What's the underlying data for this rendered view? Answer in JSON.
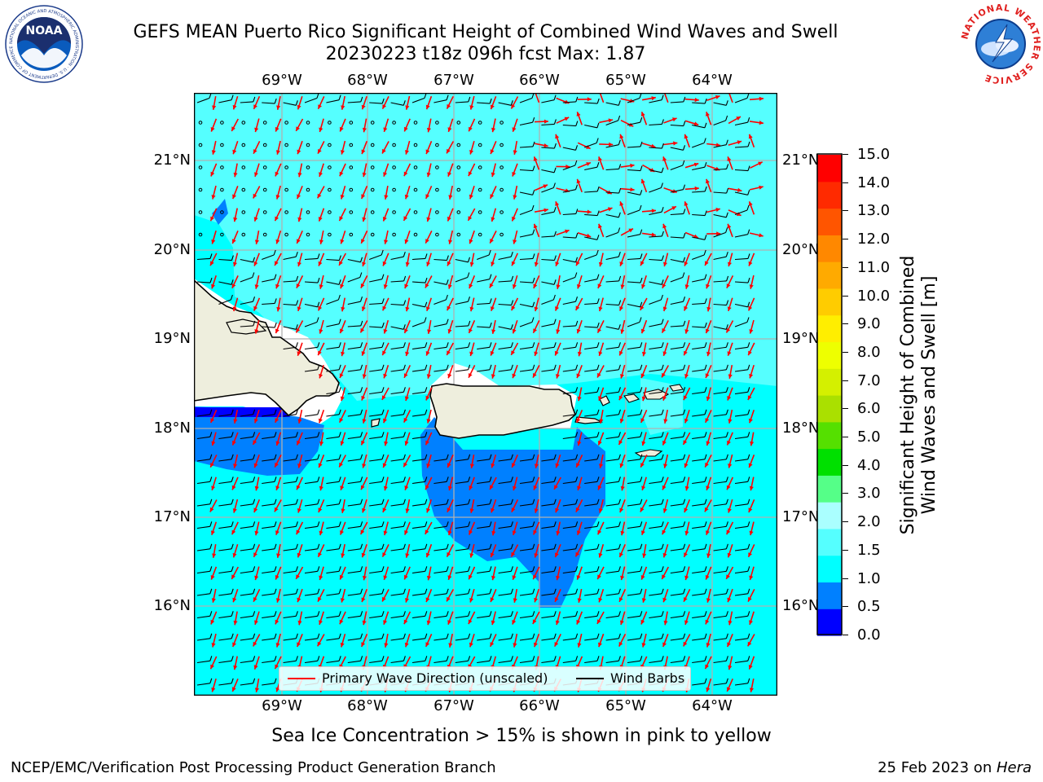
{
  "header": {
    "title_line1": "GEFS MEAN Puerto Rico Significant Height of Combined Wind Waves and Swell",
    "title_line2": "20230223 t18z 096h fcst   Max: 1.87",
    "noaa_logo_text": "NOAA",
    "noaa_ring_text": "NATIONAL OCEANIC AND ATMOSPHERIC ADMINISTRATION · U.S. DEPARTMENT OF COMMERCE",
    "nws_ring_text": "NATIONAL WEATHER SERVICE"
  },
  "map": {
    "region": "Puerto Rico",
    "lon_ticks": [
      "69°W",
      "68°W",
      "67°W",
      "66°W",
      "65°W",
      "64°W"
    ],
    "lat_ticks": [
      "21°N",
      "20°N",
      "19°N",
      "18°N",
      "17°N",
      "16°N"
    ],
    "colors": {
      "land": "#eeeedd",
      "sea_low": "#00ffff",
      "sea_mid": "#55ffff",
      "sea_lighter": "#aaffff",
      "shallow": "#0080ff",
      "shallowest": "#0000ff",
      "coast": "#000000",
      "grid": "#b0b0b0",
      "wave_arrow": "#ff0000",
      "wind_barb": "#000000"
    }
  },
  "legend": {
    "wave_direction_label": "Primary Wave Direction (unscaled)",
    "wind_barbs_label": "Wind Barbs"
  },
  "colorbar": {
    "title_line1": "Significant Height of Combined",
    "title_line2": "Wind Waves and Swell [m]",
    "ticks": [
      "15.0",
      "14.0",
      "13.0",
      "12.0",
      "11.0",
      "10.0",
      "9.0",
      "8.0",
      "7.0",
      "6.0",
      "5.0",
      "4.0",
      "3.0",
      "2.0",
      "1.5",
      "1.0",
      "0.5",
      "0.0"
    ],
    "colors": [
      "#0000ff",
      "#0080ff",
      "#00ffff",
      "#55ffff",
      "#aaffff",
      "#55ff88",
      "#00e000",
      "#55e000",
      "#aae000",
      "#d4f000",
      "#eeff00",
      "#ffee00",
      "#ffcc00",
      "#ffaa00",
      "#ff8800",
      "#ff5500",
      "#ff2a00",
      "#ff0000"
    ]
  },
  "footer": {
    "subtitle": "Sea Ice Concentration > 15% is shown in pink to yellow",
    "left": "NCEP/EMC/Verification Post Processing Product Generation Branch",
    "right_prefix": "25 Feb 2023 on ",
    "right_machine": "Hera"
  }
}
